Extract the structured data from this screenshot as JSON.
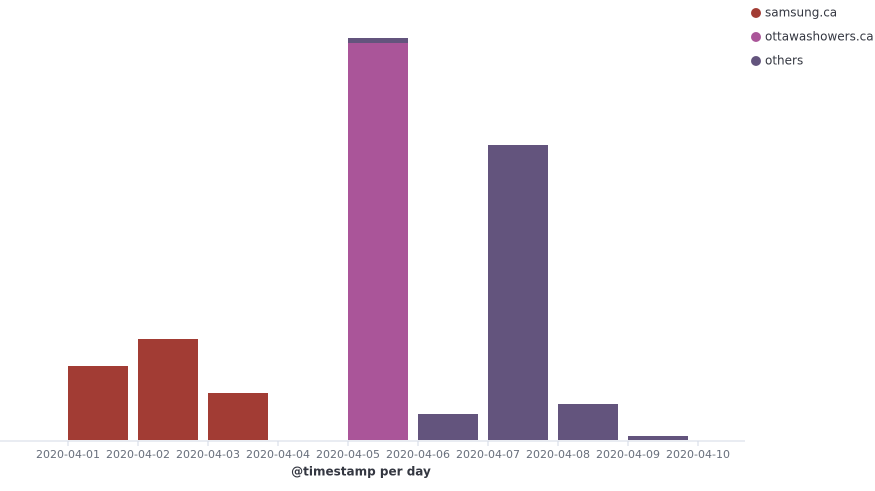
{
  "chart_data": {
    "type": "bar",
    "stacked": true,
    "x_label": "@timestamp per day",
    "categories": [
      "2020-04-01",
      "2020-04-02",
      "2020-04-03",
      "2020-04-04",
      "2020-04-05",
      "2020-04-06",
      "2020-04-07",
      "2020-04-08",
      "2020-04-09",
      "2020-04-10"
    ],
    "series": [
      {
        "name": "samsung.ca",
        "color": "#a23c34",
        "values": [
          74,
          101,
          47,
          null,
          null,
          null,
          null,
          null,
          null,
          null
        ]
      },
      {
        "name": "ottawashowers.ca",
        "color": "#aa5599",
        "values": [
          null,
          null,
          null,
          null,
          397,
          null,
          null,
          null,
          null,
          null
        ]
      },
      {
        "name": "others",
        "color": "#63547d",
        "values": [
          null,
          null,
          null,
          null,
          5,
          26,
          295,
          36,
          4,
          null
        ]
      }
    ],
    "ylim": [
      0,
      410
    ],
    "legend": "top-right"
  }
}
